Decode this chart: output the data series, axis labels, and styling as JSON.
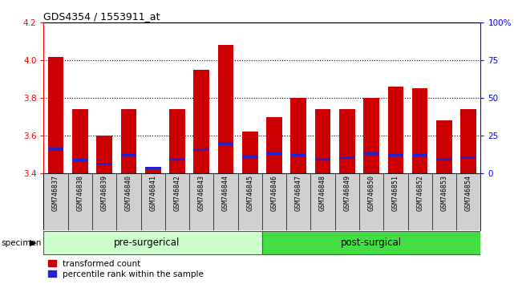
{
  "title": "GDS4354 / 1553911_at",
  "samples": [
    "GSM746837",
    "GSM746838",
    "GSM746839",
    "GSM746840",
    "GSM746841",
    "GSM746842",
    "GSM746843",
    "GSM746844",
    "GSM746845",
    "GSM746846",
    "GSM746847",
    "GSM746848",
    "GSM746849",
    "GSM746850",
    "GSM746851",
    "GSM746852",
    "GSM746853",
    "GSM746854"
  ],
  "red_values": [
    4.02,
    3.74,
    3.6,
    3.74,
    3.43,
    3.74,
    3.95,
    4.08,
    3.62,
    3.7,
    3.8,
    3.74,
    3.74,
    3.8,
    3.86,
    3.85,
    3.68,
    3.74
  ],
  "blue_heights": [
    0.018,
    0.012,
    0.012,
    0.012,
    0.012,
    0.012,
    0.012,
    0.018,
    0.018,
    0.012,
    0.012,
    0.012,
    0.012,
    0.012,
    0.012,
    0.012,
    0.012,
    0.012
  ],
  "blue_positions": [
    3.52,
    3.465,
    3.445,
    3.488,
    3.422,
    3.468,
    3.52,
    3.548,
    3.478,
    3.498,
    3.488,
    3.468,
    3.478,
    3.498,
    3.488,
    3.488,
    3.468,
    3.478
  ],
  "bar_bottom": 3.4,
  "ylim_left": [
    3.4,
    4.2
  ],
  "ylim_right": [
    0,
    100
  ],
  "yticks_left": [
    3.4,
    3.6,
    3.8,
    4.0,
    4.2
  ],
  "yticks_right": [
    0,
    25,
    50,
    75,
    100
  ],
  "ytick_labels_right": [
    "0",
    "25",
    "50",
    "75",
    "100%"
  ],
  "red_color": "#cc0000",
  "blue_color": "#2222cc",
  "bar_width": 0.65,
  "pre_surgical_label": "pre-surgerical",
  "post_surgical_label": "post-surgical",
  "pre_color": "#ccffcc",
  "post_color": "#44dd44",
  "specimen_label": "specimen",
  "legend_red": "transformed count",
  "legend_blue": "percentile rank within the sample",
  "bg_color": "#ffffff",
  "tick_area_color": "#d0d0d0",
  "grid_yticks": [
    3.6,
    3.8,
    4.0
  ]
}
